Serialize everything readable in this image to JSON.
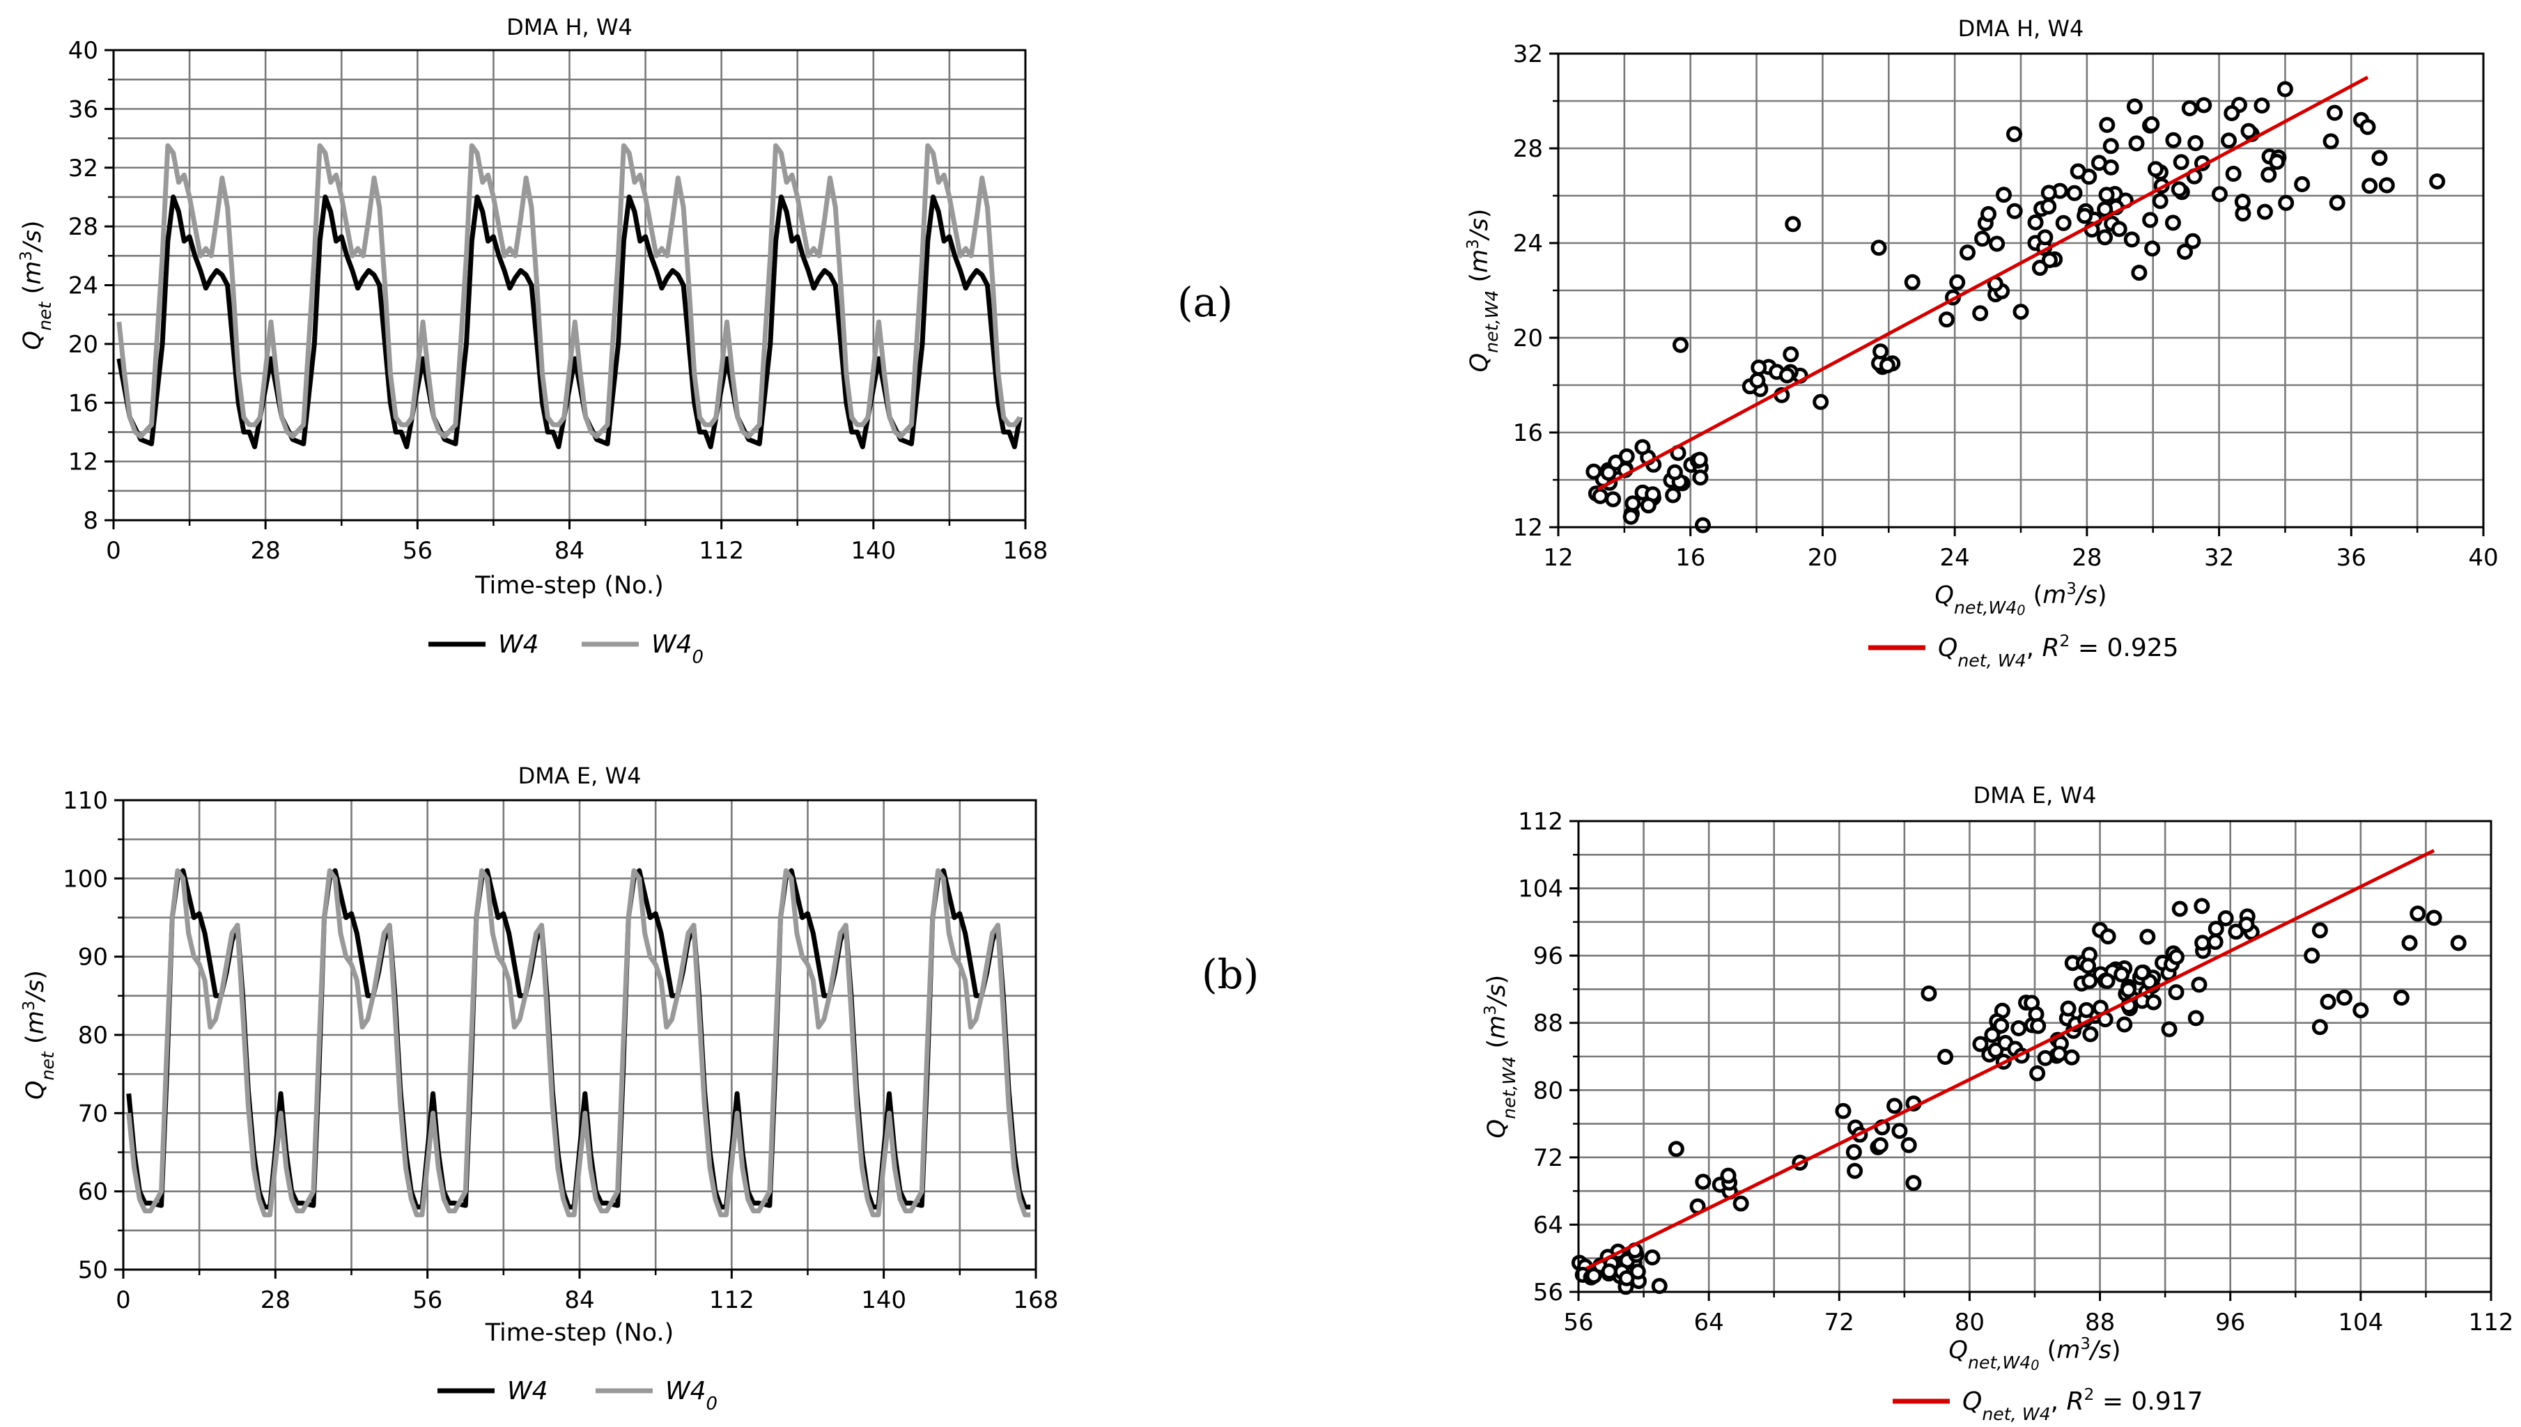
{
  "panel_labels": [
    "(a)",
    "(b)"
  ],
  "chart_data": [
    {
      "id": "ts_h",
      "type": "line",
      "title": "DMA H, W4",
      "xlabel": "Time-step (No.)",
      "ylabel": "Q_net (m³/s)",
      "xlim": [
        0,
        168
      ],
      "ylim": [
        8,
        40
      ],
      "xticks": [
        0,
        28,
        56,
        84,
        112,
        140,
        168
      ],
      "yticks": [
        8,
        12,
        16,
        20,
        24,
        28,
        32,
        36,
        40
      ],
      "grid": true,
      "legend_position": "bottom-center",
      "series": [
        {
          "name": "W4",
          "color": "#000000",
          "anchors": [
            [
              1,
              19
            ],
            [
              3,
              15
            ],
            [
              5,
              13.5
            ],
            [
              7,
              13.2
            ],
            [
              9,
              20
            ],
            [
              10,
              27
            ],
            [
              11,
              30
            ],
            [
              12,
              29
            ],
            [
              13,
              27
            ],
            [
              14,
              27.3
            ],
            [
              15,
              26
            ],
            [
              16,
              25
            ],
            [
              17,
              23.8
            ],
            [
              18,
              24.5
            ],
            [
              19,
              25
            ],
            [
              20,
              24.7
            ],
            [
              21,
              24
            ],
            [
              22,
              20
            ],
            [
              23,
              16
            ],
            [
              24,
              14
            ],
            [
              25,
              14
            ],
            [
              26,
              13
            ],
            [
              27,
              15
            ]
          ],
          "baseline": 12.8
        },
        {
          "name": "W4₀",
          "color": "#999999",
          "anchors": [
            [
              1,
              21.5
            ],
            [
              2,
              18
            ],
            [
              3,
              15
            ],
            [
              4,
              14
            ],
            [
              5,
              13.7
            ],
            [
              7,
              14.5
            ],
            [
              9,
              26
            ],
            [
              10,
              33.5
            ],
            [
              11,
              33
            ],
            [
              12,
              31
            ],
            [
              13,
              31.5
            ],
            [
              14,
              30
            ],
            [
              15,
              28
            ],
            [
              16,
              26
            ],
            [
              17,
              26.5
            ],
            [
              18,
              26
            ],
            [
              19,
              28.5
            ],
            [
              20,
              31.3
            ],
            [
              21,
              29.3
            ],
            [
              22,
              24
            ],
            [
              23,
              18
            ],
            [
              24,
              15
            ],
            [
              25,
              14.5
            ],
            [
              26,
              14.5
            ],
            [
              27,
              15
            ]
          ],
          "baseline": 12.8
        }
      ]
    },
    {
      "id": "sc_h",
      "type": "scatter",
      "title": "DMA H, W4",
      "xlabel": "Q_net,W4₀ (m³/s)",
      "ylabel": "Q_net,W4 (m³/s)",
      "xlim": [
        12,
        40
      ],
      "ylim": [
        12,
        32
      ],
      "xticks": [
        12,
        16,
        20,
        24,
        28,
        32,
        36,
        40
      ],
      "yticks": [
        12,
        16,
        20,
        24,
        28,
        32
      ],
      "grid": true,
      "legend_position": "bottom-center",
      "fit": {
        "name": "Q_net,W4",
        "r2_label": "R² = 0.925",
        "color": "#d40000",
        "x0": 13.2,
        "y0": 13.6,
        "x1": 36.5,
        "y1": 31.0
      },
      "clusters": [
        {
          "cx": 14.5,
          "cy": 14.0,
          "sx": 1.0,
          "sy": 0.7,
          "n": 34
        },
        {
          "cx": 18.5,
          "cy": 17.8,
          "sx": 0.6,
          "sy": 0.8,
          "n": 12
        },
        {
          "cx": 21.8,
          "cy": 18.9,
          "sx": 0.3,
          "sy": 0.2,
          "n": 5
        },
        {
          "cx": 24.5,
          "cy": 22.5,
          "sx": 0.8,
          "sy": 1.2,
          "n": 12
        },
        {
          "cx": 28.2,
          "cy": 25.0,
          "sx": 1.5,
          "sy": 1.4,
          "n": 42
        },
        {
          "cx": 32.0,
          "cy": 27.8,
          "sx": 2.0,
          "sy": 1.6,
          "n": 40
        }
      ],
      "extra_points": [
        [
          15.7,
          19.7
        ],
        [
          19.1,
          24.8
        ],
        [
          21.7,
          23.8
        ],
        [
          25.8,
          28.6
        ],
        [
          26.0,
          21.1
        ],
        [
          16.3,
          14.1
        ],
        [
          35.5,
          29.5
        ],
        [
          36.3,
          29.2
        ],
        [
          36.5,
          28.9
        ],
        [
          34.0,
          30.5
        ]
      ]
    },
    {
      "id": "ts_e",
      "type": "line",
      "title": "DMA E, W4",
      "xlabel": "Time-step (No.)",
      "ylabel": "Q_net (m³/s)",
      "xlim": [
        0,
        168
      ],
      "ylim": [
        50,
        110
      ],
      "xticks": [
        0,
        28,
        56,
        84,
        112,
        140,
        168
      ],
      "yticks": [
        50,
        60,
        70,
        80,
        90,
        100,
        110
      ],
      "grid": true,
      "legend_position": "bottom-center",
      "series": [
        {
          "name": "W4",
          "color": "#000000",
          "anchors": [
            [
              1,
              72.5
            ],
            [
              2,
              65
            ],
            [
              3,
              60
            ],
            [
              4,
              58.5
            ],
            [
              5,
              58.5
            ],
            [
              7,
              58.2
            ],
            [
              8,
              75
            ],
            [
              9,
              95
            ],
            [
              10,
              100
            ],
            [
              11,
              101
            ],
            [
              12,
              98
            ],
            [
              13,
              95
            ],
            [
              14,
              95.5
            ],
            [
              15,
              93
            ],
            [
              16,
              89
            ],
            [
              17,
              85
            ],
            [
              18,
              85
            ],
            [
              19,
              88
            ],
            [
              20,
              92
            ],
            [
              21,
              94
            ],
            [
              22,
              85
            ],
            [
              23,
              73
            ],
            [
              24,
              65
            ],
            [
              25,
              60
            ],
            [
              26,
              58
            ],
            [
              27,
              58
            ]
          ],
          "baseline": 56.5
        },
        {
          "name": "W4₀",
          "color": "#999999",
          "anchors": [
            [
              1,
              70
            ],
            [
              2,
              63
            ],
            [
              3,
              59
            ],
            [
              4,
              57.5
            ],
            [
              5,
              57.5
            ],
            [
              7,
              60
            ],
            [
              8,
              78
            ],
            [
              9,
              95
            ],
            [
              10,
              101
            ],
            [
              11,
              100
            ],
            [
              12,
              93
            ],
            [
              13,
              90
            ],
            [
              14,
              89
            ],
            [
              15,
              87
            ],
            [
              16,
              81
            ],
            [
              17,
              82
            ],
            [
              18,
              85
            ],
            [
              19,
              89
            ],
            [
              20,
              93
            ],
            [
              21,
              94
            ],
            [
              22,
              83
            ],
            [
              23,
              71
            ],
            [
              24,
              63
            ],
            [
              25,
              59
            ],
            [
              26,
              57
            ],
            [
              27,
              57
            ]
          ],
          "baseline": 56.5
        }
      ]
    },
    {
      "id": "sc_e",
      "type": "scatter",
      "title": "DMA E, W4",
      "xlabel": "Q_net,W4₀ (m³/s)",
      "ylabel": "Q_net,W4 (m³/s)",
      "xlim": [
        56,
        112
      ],
      "ylim": [
        56,
        112
      ],
      "xticks": [
        56,
        64,
        72,
        80,
        88,
        96,
        104,
        112
      ],
      "yticks": [
        56,
        64,
        72,
        80,
        88,
        96,
        104,
        112
      ],
      "grid": true,
      "legend_position": "bottom-center",
      "fit": {
        "name": "Q_net,W4",
        "r2_label": "R² = 0.917",
        "color": "#d40000",
        "x0": 56.5,
        "y0": 58.8,
        "x1": 108.5,
        "y1": 108.5
      },
      "clusters": [
        {
          "cx": 58.2,
          "cy": 58.8,
          "sx": 1.4,
          "sy": 1.0,
          "n": 34
        },
        {
          "cx": 64.5,
          "cy": 67.0,
          "sx": 0.8,
          "sy": 2.0,
          "n": 7
        },
        {
          "cx": 75.0,
          "cy": 73.0,
          "sx": 2.0,
          "sy": 3.0,
          "n": 14
        },
        {
          "cx": 84.0,
          "cy": 86.5,
          "sx": 2.0,
          "sy": 2.0,
          "n": 32
        },
        {
          "cx": 89.5,
          "cy": 92.5,
          "sx": 2.2,
          "sy": 2.5,
          "n": 42
        },
        {
          "cx": 95.0,
          "cy": 99.0,
          "sx": 1.8,
          "sy": 3.0,
          "n": 14
        }
      ],
      "extra_points": [
        [
          101.5,
          87.5
        ],
        [
          102.0,
          90.5
        ],
        [
          103.0,
          91.0
        ],
        [
          104.0,
          89.5
        ],
        [
          106.5,
          91.0
        ],
        [
          107.0,
          97.5
        ],
        [
          107.5,
          101.0
        ],
        [
          108.5,
          100.5
        ],
        [
          110.0,
          97.5
        ],
        [
          101.5,
          99.0
        ],
        [
          101.0,
          96.0
        ],
        [
          77.5,
          91.5
        ],
        [
          62.0,
          73.0
        ]
      ]
    }
  ]
}
